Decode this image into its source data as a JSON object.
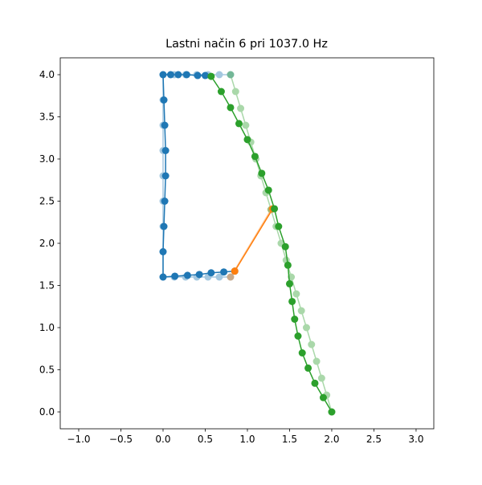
{
  "chart_data": {
    "type": "line",
    "title": "Lastni način 6 pri 1037.0 Hz",
    "xlim": [
      -1.219,
      3.21
    ],
    "ylim": [
      -0.2,
      4.2
    ],
    "xticks": [
      {
        "value": -1.0,
        "label": "−1.0"
      },
      {
        "value": -0.5,
        "label": "−0.5"
      },
      {
        "value": 0.0,
        "label": "0.0"
      },
      {
        "value": 0.5,
        "label": "0.5"
      },
      {
        "value": 1.0,
        "label": "1.0"
      },
      {
        "value": 1.5,
        "label": "1.5"
      },
      {
        "value": 2.0,
        "label": "2.0"
      },
      {
        "value": 2.5,
        "label": "2.5"
      },
      {
        "value": 3.0,
        "label": "3.0"
      }
    ],
    "yticks": [
      {
        "value": 0.0,
        "label": "0.0"
      },
      {
        "value": 0.5,
        "label": "0.5"
      },
      {
        "value": 1.0,
        "label": "1.0"
      },
      {
        "value": 1.5,
        "label": "1.5"
      },
      {
        "value": 2.0,
        "label": "2.0"
      },
      {
        "value": 2.5,
        "label": "2.5"
      },
      {
        "value": 3.0,
        "label": "3.0"
      },
      {
        "value": 3.5,
        "label": "3.5"
      },
      {
        "value": 4.0,
        "label": "4.0"
      }
    ],
    "series": [
      {
        "color": "#1f77b4",
        "opacity": 0.4,
        "x": [
          0.8,
          0.667,
          0.533,
          0.4,
          0.267,
          0.133,
          0,
          0,
          0,
          0,
          0,
          0,
          0,
          0,
          0,
          0.133,
          0.267,
          0.4,
          0.533,
          0.667,
          0.8
        ],
        "values": [
          4.0,
          4.0,
          4.0,
          4.0,
          4.0,
          4.0,
          4.0,
          3.7,
          3.4,
          3.1,
          2.8,
          2.5,
          2.2,
          1.9,
          1.6,
          1.6,
          1.6,
          1.6,
          1.6,
          1.6,
          1.6
        ]
      },
      {
        "color": "#ff7f0e",
        "opacity": 0.4,
        "x": [
          0.8,
          1.28
        ],
        "values": [
          1.6,
          2.4
        ]
      },
      {
        "color": "#2ca02c",
        "opacity": 0.4,
        "x": [
          0.8,
          0.86,
          0.92,
          0.98,
          1.04,
          1.1,
          1.16,
          1.22,
          1.28,
          1.34,
          1.4,
          1.46,
          1.52,
          1.58,
          1.64,
          1.7,
          1.76,
          1.82,
          1.88,
          1.94,
          2.0
        ],
        "values": [
          4.0,
          3.8,
          3.6,
          3.4,
          3.2,
          3.0,
          2.8,
          2.6,
          2.4,
          2.2,
          2.0,
          1.8,
          1.6,
          1.4,
          1.2,
          1.0,
          0.8,
          0.6,
          0.4,
          0.2,
          0.0
        ]
      },
      {
        "color": "#1f77b4",
        "opacity": 1,
        "x": [
          0.5,
          0.41,
          0.28,
          0.18,
          0.09,
          0,
          0.01,
          0.02,
          0.03,
          0.03,
          0.02,
          0.01,
          0,
          0,
          0.14,
          0.29,
          0.43,
          0.57,
          0.72,
          0.85
        ],
        "values": [
          3.99,
          3.99,
          4.0,
          4.0,
          4.0,
          4.0,
          3.7,
          3.4,
          3.1,
          2.8,
          2.5,
          2.2,
          1.9,
          1.6,
          1.61,
          1.62,
          1.63,
          1.65,
          1.66,
          1.67
        ]
      },
      {
        "color": "#ff7f0e",
        "opacity": 1,
        "x": [
          0.85,
          1.3
        ],
        "values": [
          1.67,
          2.41
        ]
      },
      {
        "color": "#2ca02c",
        "opacity": 1,
        "x": [
          0.57,
          0.69,
          0.8,
          0.9,
          1.0,
          1.09,
          1.17,
          1.25,
          1.32,
          1.37,
          1.45,
          1.48,
          1.5,
          1.53,
          1.56,
          1.6,
          1.65,
          1.72,
          1.8,
          1.9,
          2.0
        ],
        "values": [
          3.98,
          3.8,
          3.61,
          3.42,
          3.23,
          3.03,
          2.83,
          2.63,
          2.41,
          2.2,
          1.96,
          1.74,
          1.52,
          1.31,
          1.1,
          0.9,
          0.7,
          0.52,
          0.34,
          0.17,
          0.0
        ]
      }
    ]
  }
}
